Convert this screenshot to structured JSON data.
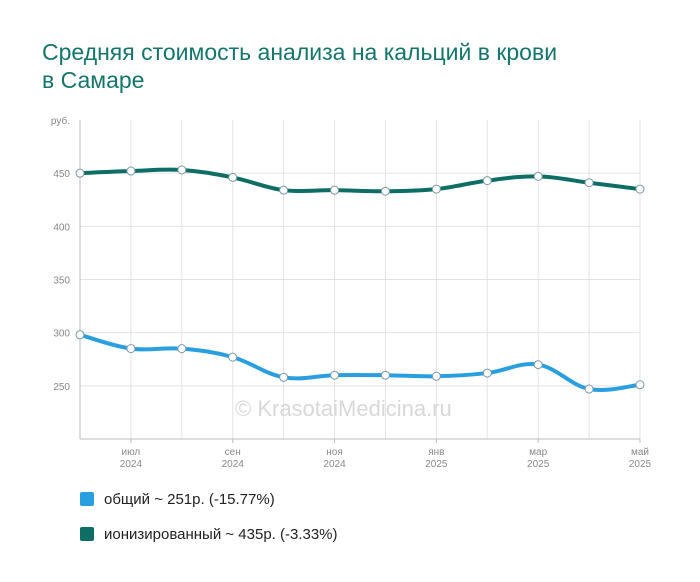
{
  "title": "Средняя стоимость анализа на кальций в крови в Самаре",
  "watermark": "© KrasotaiMedicina.ru",
  "chart_data": {
    "type": "line",
    "ylabel": "руб.",
    "ylim": [
      200,
      500
    ],
    "yticks": [
      250,
      300,
      350,
      400,
      450
    ],
    "grid": true,
    "legend_position": "bottom-left",
    "x_tick_labels": [
      {
        "index": 1,
        "month": "июл",
        "year": "2024"
      },
      {
        "index": 3,
        "month": "сен",
        "year": "2024"
      },
      {
        "index": 5,
        "month": "ноя",
        "year": "2024"
      },
      {
        "index": 7,
        "month": "янв",
        "year": "2025"
      },
      {
        "index": 9,
        "month": "мар",
        "year": "2025"
      },
      {
        "index": 11,
        "month": "май",
        "year": "2025"
      }
    ],
    "x": [
      "2024-06",
      "2024-07",
      "2024-08",
      "2024-09",
      "2024-10",
      "2024-11",
      "2024-12",
      "2025-01",
      "2025-02",
      "2025-03",
      "2025-04",
      "2025-05"
    ],
    "series": [
      {
        "name": "общий",
        "legend": "общий ~ 251р. (-15.77%)",
        "color": "#2a9fe0",
        "values": [
          298,
          285,
          285,
          277,
          258,
          260,
          260,
          259,
          262,
          270,
          247,
          251
        ]
      },
      {
        "name": "ионизированный",
        "legend": "ионизированный ~ 435р. (-3.33%)",
        "color": "#0e6e66",
        "values": [
          450,
          452,
          453,
          446,
          434,
          434,
          433,
          435,
          443,
          447,
          441,
          435
        ]
      }
    ]
  }
}
